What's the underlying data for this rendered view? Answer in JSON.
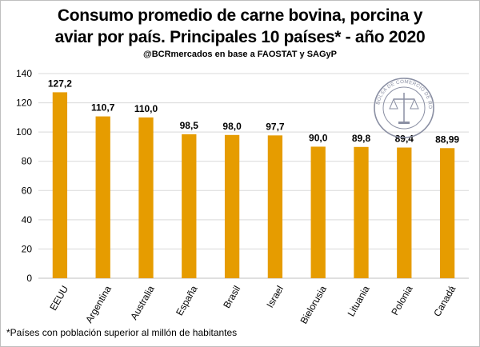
{
  "chart_data": {
    "type": "bar",
    "title_line1": "Consumo promedio de carne bovina, porcina y",
    "title_line2": "aviar por país. Principales 10 países* - año 2020",
    "subtitle": "@BCRmercados en base a FAOSTAT y SAGyP",
    "categories": [
      "EEUU",
      "Argentina",
      "Australia",
      "España",
      "Brasil",
      "Israel",
      "Bielorusia",
      "Lituania",
      "Polonia",
      "Canadá"
    ],
    "values": [
      127.2,
      110.7,
      110.0,
      98.5,
      98.0,
      97.7,
      90.0,
      89.8,
      89.4,
      88.99
    ],
    "value_labels": [
      "127,2",
      "110,7",
      "110,0",
      "98,5",
      "98,0",
      "97,7",
      "90,0",
      "89,8",
      "89,4",
      "88,99"
    ],
    "yticks": [
      "0",
      "20",
      "40",
      "60",
      "80",
      "100",
      "120",
      "140"
    ],
    "ylim": [
      0,
      140
    ],
    "grid": true,
    "bar_color": "#E69C00",
    "footnote": "*Países con población superior al millón de habitantes",
    "seal_text": "BOLSA DE COMERCIO DE ROSARIO"
  }
}
